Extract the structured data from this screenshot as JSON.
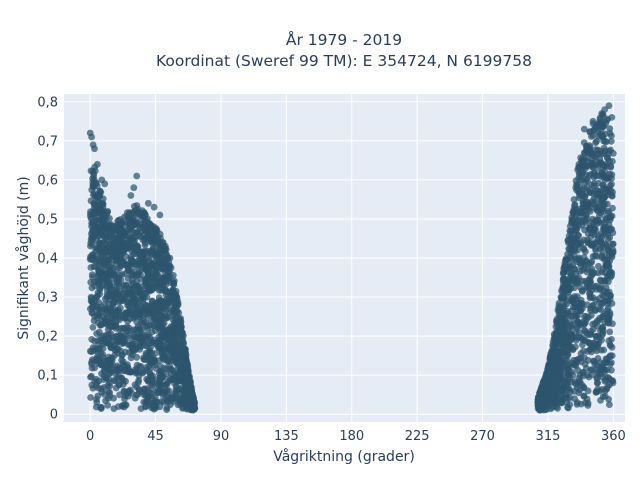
{
  "chart_data": {
    "type": "scatter",
    "title_line1": "År 1979 - 2019",
    "title_line2": "Koordinat (Sweref 99 TM): E 354724, N 6199758",
    "xlabel": "Vågriktning (grader)",
    "ylabel": "Signifikant våghöjd (m)",
    "xlim": [
      -18,
      368
    ],
    "ylim": [
      -0.02,
      0.82
    ],
    "x_ticks": [
      0,
      45,
      90,
      135,
      180,
      225,
      270,
      315,
      360
    ],
    "y_ticks": [
      0,
      0.1,
      0.2,
      0.3,
      0.4,
      0.5,
      0.6,
      0.7,
      0.8
    ],
    "y_tick_labels": [
      "0",
      "0,1",
      "0,2",
      "0,3",
      "0,4",
      "0,5",
      "0,6",
      "0,7",
      "0,8"
    ],
    "grid": true,
    "marker_color": "#2e556e",
    "background_color": "#e5ecf6",
    "clusters": [
      {
        "x_range": [
          0,
          72
        ],
        "y_envelope": [
          [
            0,
            0.7
          ],
          [
            5,
            0.6
          ],
          [
            10,
            0.55
          ],
          [
            15,
            0.48
          ],
          [
            20,
            0.5
          ],
          [
            25,
            0.52
          ],
          [
            30,
            0.54
          ],
          [
            35,
            0.53
          ],
          [
            40,
            0.5
          ],
          [
            45,
            0.48
          ],
          [
            50,
            0.45
          ],
          [
            55,
            0.4
          ],
          [
            60,
            0.3
          ],
          [
            65,
            0.18
          ],
          [
            70,
            0.06
          ],
          [
            72,
            0.03
          ]
        ]
      },
      {
        "x_range": [
          308,
          360
        ],
        "y_envelope": [
          [
            308,
            0.04
          ],
          [
            315,
            0.12
          ],
          [
            320,
            0.22
          ],
          [
            325,
            0.35
          ],
          [
            330,
            0.48
          ],
          [
            335,
            0.62
          ],
          [
            340,
            0.7
          ],
          [
            345,
            0.74
          ],
          [
            350,
            0.76
          ],
          [
            355,
            0.78
          ],
          [
            360,
            0.7
          ]
        ]
      }
    ],
    "outliers": [
      [
        0,
        0.72
      ],
      [
        1,
        0.71
      ],
      [
        2,
        0.69
      ],
      [
        3,
        0.68
      ],
      [
        5,
        0.64
      ],
      [
        8,
        0.6
      ],
      [
        10,
        0.59
      ],
      [
        28,
        0.56
      ],
      [
        30,
        0.58
      ],
      [
        32,
        0.61
      ],
      [
        40,
        0.54
      ],
      [
        44,
        0.53
      ],
      [
        48,
        0.51
      ],
      [
        352,
        0.77
      ],
      [
        354,
        0.78
      ],
      [
        357,
        0.79
      ],
      [
        346,
        0.75
      ],
      [
        340,
        0.73
      ],
      [
        359,
        0.76
      ]
    ]
  }
}
